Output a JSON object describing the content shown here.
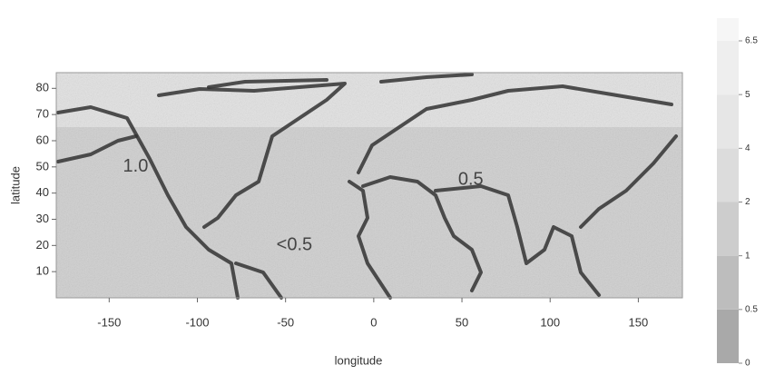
{
  "chart_data": {
    "type": "map",
    "x_label": "longitude",
    "y_label": "latitude",
    "xlim": [
      -180,
      175
    ],
    "xticks": [
      -150,
      -100,
      -50,
      0,
      50,
      100,
      150
    ],
    "ylim": [
      0,
      86
    ],
    "yticks": [
      10,
      20,
      30,
      40,
      50,
      60,
      70,
      80
    ],
    "colorbar": {
      "levels": [
        0,
        0.5,
        1,
        2,
        4,
        5,
        6.5
      ],
      "colors": [
        "#a9a9a9",
        "#bdbdbd",
        "#cdcdcd",
        "#dcdcdc",
        "#e6e6e6",
        "#eeeeee",
        "#f6f6f6"
      ]
    },
    "annotations": [
      {
        "text": "1.0",
        "x": -135,
        "y": 50
      },
      {
        "text": "0.5",
        "x": 55,
        "y": 45
      },
      {
        "text": "<0.5",
        "x": -45,
        "y": 20
      }
    ]
  }
}
